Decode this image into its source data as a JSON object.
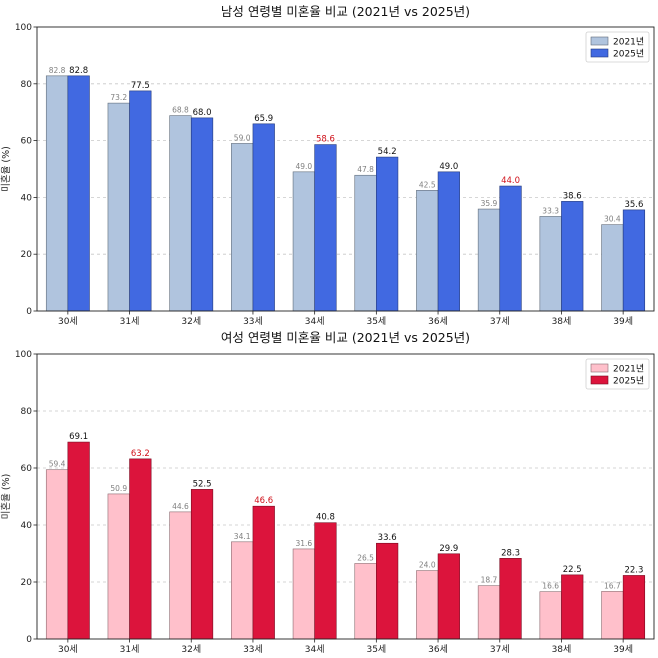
{
  "chart_data": [
    {
      "type": "bar",
      "title": "남성 연령별 미혼율 비교 (2021년 vs 2025년)",
      "ylabel": "미혼율 (%)",
      "xlabel": "",
      "ylim": [
        0,
        100
      ],
      "yticks": [
        0,
        20,
        40,
        60,
        80,
        100
      ],
      "grid": "y-dashed",
      "legend": "top-right",
      "categories": [
        "30세",
        "31세",
        "32세",
        "33세",
        "34세",
        "35세",
        "36세",
        "37세",
        "38세",
        "39세"
      ],
      "series": [
        {
          "name": "2021년",
          "color": "#b0c4de",
          "values": [
            82.8,
            73.2,
            68.8,
            59.0,
            49.0,
            47.8,
            42.5,
            35.9,
            33.3,
            30.4
          ]
        },
        {
          "name": "2025년",
          "color": "#4169e1",
          "values": [
            82.8,
            77.5,
            68.0,
            65.9,
            58.6,
            54.2,
            49.0,
            44.0,
            38.6,
            35.6
          ]
        }
      ],
      "highlight_labels": [
        "34세",
        "37세"
      ],
      "highlight_color": "#d0121b"
    },
    {
      "type": "bar",
      "title": "여성 연령별 미혼율 비교 (2021년 vs 2025년)",
      "ylabel": "미혼율 (%)",
      "xlabel": "",
      "ylim": [
        0,
        100
      ],
      "yticks": [
        0,
        20,
        40,
        60,
        80,
        100
      ],
      "grid": "y-dashed",
      "legend": "top-right",
      "categories": [
        "30세",
        "31세",
        "32세",
        "33세",
        "34세",
        "35세",
        "36세",
        "37세",
        "38세",
        "39세"
      ],
      "series": [
        {
          "name": "2021년",
          "color": "#ffc0cb",
          "values": [
            59.4,
            50.9,
            44.6,
            34.1,
            31.6,
            26.5,
            24.0,
            18.7,
            16.6,
            16.7
          ]
        },
        {
          "name": "2025년",
          "color": "#dc143c",
          "values": [
            69.1,
            63.2,
            52.5,
            46.6,
            40.8,
            33.6,
            29.9,
            28.3,
            22.5,
            22.3
          ]
        }
      ],
      "highlight_labels": [
        "31세",
        "33세"
      ],
      "highlight_color": "#d0121b"
    }
  ]
}
